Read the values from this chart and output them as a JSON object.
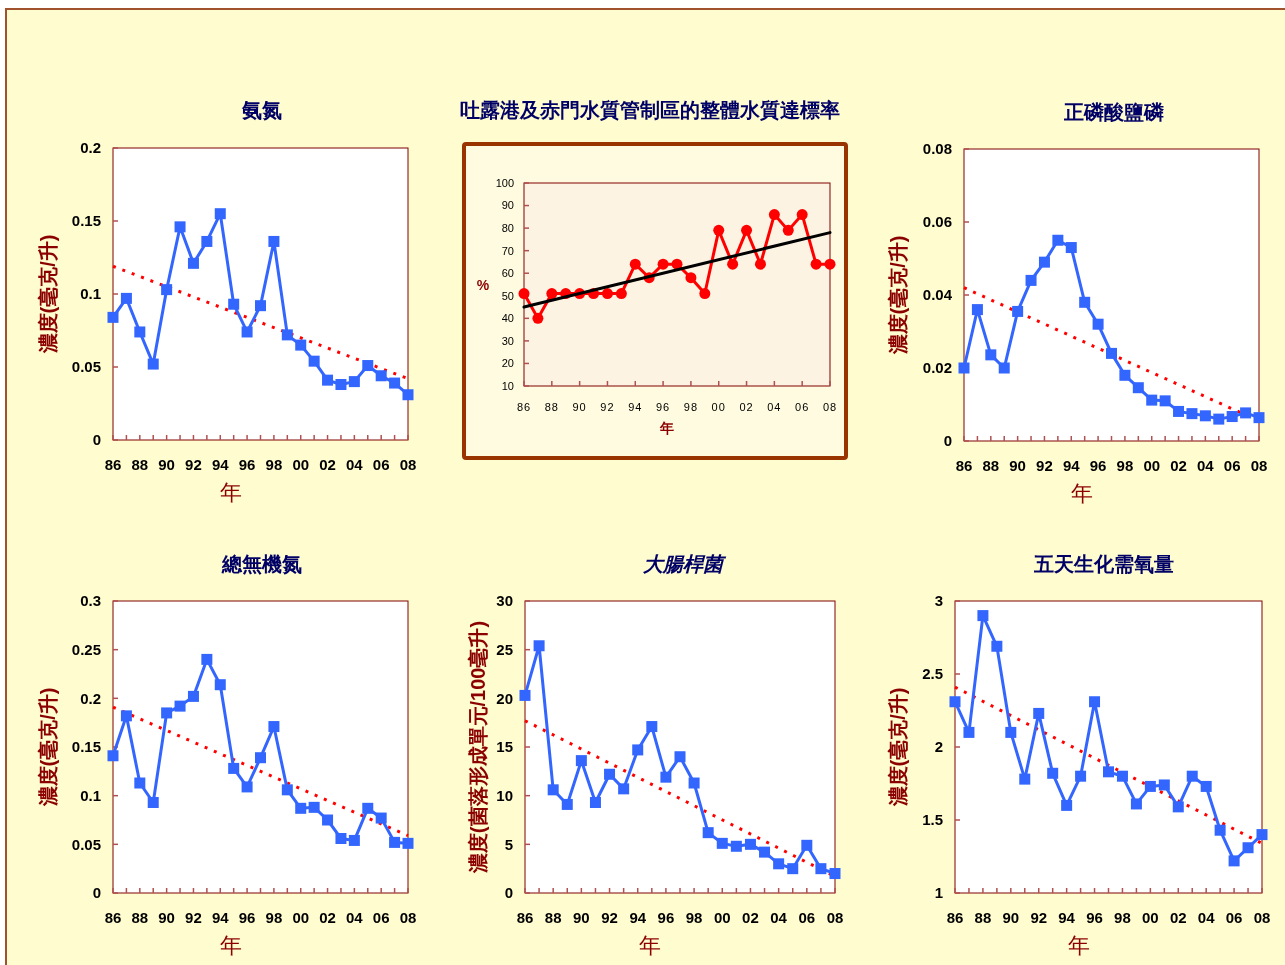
{
  "chart_data": [
    {
      "type": "line",
      "title": "氨氮",
      "xlabel": "年",
      "ylabel": "濃度(毫克/升)",
      "marker": "square",
      "xlim": [
        1986,
        2008
      ],
      "ylim": [
        0,
        0.2
      ],
      "yticks": [
        0,
        0.05,
        0.1,
        0.15,
        0.2
      ],
      "xticks": [
        {
          "value": 1986,
          "label": "86"
        },
        {
          "value": 1987,
          "label": null
        },
        {
          "value": 1988,
          "label": "88"
        },
        {
          "value": 1989,
          "label": null
        },
        {
          "value": 1990,
          "label": "90"
        },
        {
          "value": 1991,
          "label": null
        },
        {
          "value": 1992,
          "label": "92"
        },
        {
          "value": 1993,
          "label": null
        },
        {
          "value": 1994,
          "label": "94"
        },
        {
          "value": 1995,
          "label": null
        },
        {
          "value": 1996,
          "label": "96"
        },
        {
          "value": 1997,
          "label": null
        },
        {
          "value": 1998,
          "label": "98"
        },
        {
          "value": 1999,
          "label": null
        },
        {
          "value": 2000,
          "label": "00"
        },
        {
          "value": 2001,
          "label": null
        },
        {
          "value": 2002,
          "label": "02"
        },
        {
          "value": 2003,
          "label": null
        },
        {
          "value": 2004,
          "label": "04"
        },
        {
          "value": 2005,
          "label": null
        },
        {
          "value": 2006,
          "label": "06"
        },
        {
          "value": 2007,
          "label": null
        },
        {
          "value": 2008,
          "label": "08"
        }
      ],
      "x": [
        1986,
        1987,
        1988,
        1989,
        1990,
        1991,
        1992,
        1993,
        1994,
        1995,
        1996,
        1997,
        1998,
        1999,
        2000,
        2001,
        2002,
        2003,
        2004,
        2005,
        2006,
        2007,
        2008
      ],
      "series": [
        {
          "color": "#3366ff",
          "values": [
            0.084,
            0.097,
            0.074,
            0.052,
            0.103,
            0.146,
            0.121,
            0.136,
            0.155,
            0.093,
            0.074,
            0.092,
            0.136,
            0.072,
            0.065,
            0.054,
            0.041,
            0.038,
            0.04,
            0.051,
            0.044,
            0.039,
            0.031
          ]
        },
        {
          "type": "line",
          "color": "#ff0000",
          "values": [
            0.119,
            null,
            null,
            null,
            null,
            null,
            null,
            null,
            null,
            null,
            null,
            null,
            null,
            null,
            null,
            null,
            null,
            null,
            null,
            null,
            null,
            null,
            0.042
          ],
          "marker": "none",
          "line_style": "dotted"
        }
      ]
    },
    {
      "type": "line",
      "title": "吐露港及赤門水質管制區的整體水質達標率",
      "xlabel": "年",
      "ylabel": "%",
      "marker": "circle",
      "xlim": [
        1986,
        2008
      ],
      "ylim": [
        10,
        100
      ],
      "yticks": [
        10,
        20,
        30,
        40,
        50,
        60,
        70,
        80,
        90,
        100
      ],
      "xticks": [
        {
          "value": 1986,
          "label": "86"
        },
        {
          "value": 1988,
          "label": "88"
        },
        {
          "value": 1990,
          "label": "90"
        },
        {
          "value": 1992,
          "label": "92"
        },
        {
          "value": 1994,
          "label": "94"
        },
        {
          "value": 1996,
          "label": "96"
        },
        {
          "value": 1998,
          "label": "98"
        },
        {
          "value": 2000,
          "label": "00"
        },
        {
          "value": 2002,
          "label": "02"
        },
        {
          "value": 2004,
          "label": "04"
        },
        {
          "value": 2006,
          "label": "06"
        },
        {
          "value": 2008,
          "label": "08"
        }
      ],
      "x": [
        1986,
        1987,
        1988,
        1989,
        1990,
        1991,
        1992,
        1993,
        1994,
        1995,
        1996,
        1997,
        1998,
        1999,
        2000,
        2001,
        2002,
        2003,
        2004,
        2005,
        2006,
        2007,
        2008
      ],
      "series": [
        {
          "color": "#ff0000",
          "values": [
            51,
            40,
            51,
            51,
            51,
            51,
            51,
            51,
            64,
            58,
            64,
            64,
            58,
            51,
            79,
            64,
            79,
            64,
            86,
            79,
            86,
            64,
            64
          ]
        },
        {
          "type": "line",
          "color": "#000000",
          "values": [
            45,
            null,
            null,
            null,
            null,
            null,
            null,
            null,
            null,
            null,
            null,
            null,
            null,
            null,
            null,
            null,
            null,
            null,
            null,
            null,
            null,
            null,
            78
          ],
          "marker": "none"
        }
      ]
    },
    {
      "type": "line",
      "title": "正磷酸鹽磷",
      "xlabel": "年",
      "ylabel": "濃度(毫克/升)",
      "marker": "square",
      "xlim": [
        1986,
        2008
      ],
      "ylim": [
        0,
        0.08
      ],
      "yticks": [
        0,
        0.02,
        0.04,
        0.06,
        0.08
      ],
      "xticks": [
        {
          "value": 1986,
          "label": "86"
        },
        {
          "value": 1987,
          "label": null
        },
        {
          "value": 1988,
          "label": "88"
        },
        {
          "value": 1989,
          "label": null
        },
        {
          "value": 1990,
          "label": "90"
        },
        {
          "value": 1991,
          "label": null
        },
        {
          "value": 1992,
          "label": "92"
        },
        {
          "value": 1993,
          "label": null
        },
        {
          "value": 1994,
          "label": "94"
        },
        {
          "value": 1995,
          "label": null
        },
        {
          "value": 1996,
          "label": "96"
        },
        {
          "value": 1997,
          "label": null
        },
        {
          "value": 1998,
          "label": "98"
        },
        {
          "value": 1999,
          "label": null
        },
        {
          "value": 2000,
          "label": "00"
        },
        {
          "value": 2001,
          "label": null
        },
        {
          "value": 2002,
          "label": "02"
        },
        {
          "value": 2003,
          "label": null
        },
        {
          "value": 2004,
          "label": "04"
        },
        {
          "value": 2005,
          "label": null
        },
        {
          "value": 2006,
          "label": "06"
        },
        {
          "value": 2007,
          "label": null
        },
        {
          "value": 2008,
          "label": "08"
        }
      ],
      "x": [
        1986,
        1987,
        1988,
        1989,
        1990,
        1991,
        1992,
        1993,
        1994,
        1995,
        1996,
        1997,
        1998,
        1999,
        2000,
        2001,
        2002,
        2003,
        2004,
        2005,
        2006,
        2007,
        2008
      ],
      "series": [
        {
          "color": "#3366ff",
          "values": [
            0.02,
            0.036,
            0.0236,
            0.02,
            0.0355,
            0.044,
            0.049,
            0.055,
            0.053,
            0.038,
            0.032,
            0.024,
            0.018,
            0.0146,
            0.0112,
            0.011,
            0.0081,
            0.0075,
            0.0069,
            0.006,
            0.0067,
            0.0077,
            0.0064
          ]
        },
        {
          "type": "line",
          "color": "#ff0000",
          "values": [
            0.042,
            null,
            null,
            null,
            null,
            null,
            null,
            null,
            null,
            null,
            null,
            null,
            null,
            null,
            null,
            null,
            null,
            null,
            null,
            null,
            null,
            null,
            0.0055
          ],
          "marker": "none",
          "line_style": "dotted"
        }
      ]
    },
    {
      "type": "line",
      "title": "總無機氮",
      "xlabel": "年",
      "ylabel": "濃度(毫克/升)",
      "marker": "square",
      "xlim": [
        1986,
        2008
      ],
      "ylim": [
        0,
        0.3
      ],
      "yticks": [
        0,
        0.05,
        0.1,
        0.15,
        0.2,
        0.25,
        0.3
      ],
      "xticks": [
        {
          "value": 1986,
          "label": "86"
        },
        {
          "value": 1987,
          "label": null
        },
        {
          "value": 1988,
          "label": "88"
        },
        {
          "value": 1989,
          "label": null
        },
        {
          "value": 1990,
          "label": "90"
        },
        {
          "value": 1991,
          "label": null
        },
        {
          "value": 1992,
          "label": "92"
        },
        {
          "value": 1993,
          "label": null
        },
        {
          "value": 1994,
          "label": "94"
        },
        {
          "value": 1995,
          "label": null
        },
        {
          "value": 1996,
          "label": "96"
        },
        {
          "value": 1997,
          "label": null
        },
        {
          "value": 1998,
          "label": "98"
        },
        {
          "value": 1999,
          "label": null
        },
        {
          "value": 2000,
          "label": "00"
        },
        {
          "value": 2001,
          "label": null
        },
        {
          "value": 2002,
          "label": "02"
        },
        {
          "value": 2003,
          "label": null
        },
        {
          "value": 2004,
          "label": "04"
        },
        {
          "value": 2005,
          "label": null
        },
        {
          "value": 2006,
          "label": "06"
        },
        {
          "value": 2007,
          "label": null
        },
        {
          "value": 2008,
          "label": "08"
        }
      ],
      "x": [
        1986,
        1987,
        1988,
        1989,
        1990,
        1991,
        1992,
        1993,
        1994,
        1995,
        1996,
        1997,
        1998,
        1999,
        2000,
        2001,
        2002,
        2003,
        2004,
        2005,
        2006,
        2007,
        2008
      ],
      "series": [
        {
          "color": "#3366ff",
          "values": [
            0.141,
            0.182,
            0.113,
            0.093,
            0.185,
            0.192,
            0.202,
            0.24,
            0.214,
            0.128,
            0.109,
            0.139,
            0.171,
            0.106,
            0.087,
            0.088,
            0.075,
            0.056,
            0.054,
            0.087,
            0.077,
            0.052,
            0.051
          ]
        },
        {
          "type": "line",
          "color": "#ff0000",
          "values": [
            0.191,
            null,
            null,
            null,
            null,
            null,
            null,
            null,
            null,
            null,
            null,
            null,
            null,
            null,
            null,
            null,
            null,
            null,
            null,
            null,
            null,
            null,
            0.059
          ],
          "marker": "none",
          "line_style": "dotted"
        }
      ]
    },
    {
      "type": "line",
      "title": "大腸桿菌",
      "xlabel": "年",
      "ylabel": "濃度(菌落形成單元/100毫升)",
      "marker": "square",
      "xlim": [
        1986,
        2008
      ],
      "ylim": [
        0,
        30
      ],
      "yticks": [
        0,
        5,
        10,
        15,
        20,
        25,
        30
      ],
      "xticks": [
        {
          "value": 1986,
          "label": "86"
        },
        {
          "value": 1987,
          "label": null
        },
        {
          "value": 1988,
          "label": "88"
        },
        {
          "value": 1989,
          "label": null
        },
        {
          "value": 1990,
          "label": "90"
        },
        {
          "value": 1991,
          "label": null
        },
        {
          "value": 1992,
          "label": "92"
        },
        {
          "value": 1993,
          "label": null
        },
        {
          "value": 1994,
          "label": "94"
        },
        {
          "value": 1995,
          "label": null
        },
        {
          "value": 1996,
          "label": "96"
        },
        {
          "value": 1997,
          "label": null
        },
        {
          "value": 1998,
          "label": "98"
        },
        {
          "value": 1999,
          "label": null
        },
        {
          "value": 2000,
          "label": "00"
        },
        {
          "value": 2001,
          "label": null
        },
        {
          "value": 2002,
          "label": "02"
        },
        {
          "value": 2003,
          "label": null
        },
        {
          "value": 2004,
          "label": "04"
        },
        {
          "value": 2005,
          "label": null
        },
        {
          "value": 2006,
          "label": "06"
        },
        {
          "value": 2007,
          "label": null
        },
        {
          "value": 2008,
          "label": "08"
        }
      ],
      "x": [
        1986,
        1987,
        1988,
        1989,
        1990,
        1991,
        1992,
        1993,
        1994,
        1995,
        1996,
        1997,
        1998,
        1999,
        2000,
        2001,
        2002,
        2003,
        2004,
        2005,
        2006,
        2007,
        2008
      ],
      "series": [
        {
          "color": "#3366ff",
          "values": [
            20.3,
            25.4,
            10.6,
            9.1,
            13.6,
            9.3,
            12.2,
            10.7,
            14.7,
            17.1,
            11.9,
            14.0,
            11.3,
            6.2,
            5.1,
            4.8,
            5.0,
            4.2,
            3.0,
            2.5,
            4.9,
            2.5,
            2.0
          ]
        },
        {
          "type": "line",
          "color": "#ff0000",
          "values": [
            17.7,
            null,
            null,
            null,
            null,
            null,
            null,
            null,
            null,
            null,
            null,
            null,
            null,
            null,
            null,
            null,
            null,
            null,
            null,
            null,
            null,
            null,
            1.7
          ],
          "marker": "none",
          "line_style": "dotted"
        }
      ]
    },
    {
      "type": "line",
      "title": "五天生化需氧量",
      "xlabel": "年",
      "ylabel": "濃度(毫克/升)",
      "marker": "square",
      "xlim": [
        1986,
        2008
      ],
      "ylim": [
        1,
        3
      ],
      "yticks": [
        1,
        1.5,
        2,
        2.5,
        3
      ],
      "xticks": [
        {
          "value": 1986,
          "label": "86"
        },
        {
          "value": 1987,
          "label": null
        },
        {
          "value": 1988,
          "label": "88"
        },
        {
          "value": 1989,
          "label": null
        },
        {
          "value": 1990,
          "label": "90"
        },
        {
          "value": 1991,
          "label": null
        },
        {
          "value": 1992,
          "label": "92"
        },
        {
          "value": 1993,
          "label": null
        },
        {
          "value": 1994,
          "label": "94"
        },
        {
          "value": 1995,
          "label": null
        },
        {
          "value": 1996,
          "label": "96"
        },
        {
          "value": 1997,
          "label": null
        },
        {
          "value": 1998,
          "label": "98"
        },
        {
          "value": 1999,
          "label": null
        },
        {
          "value": 2000,
          "label": "00"
        },
        {
          "value": 2001,
          "label": null
        },
        {
          "value": 2002,
          "label": "02"
        },
        {
          "value": 2003,
          "label": null
        },
        {
          "value": 2004,
          "label": "04"
        },
        {
          "value": 2005,
          "label": null
        },
        {
          "value": 2006,
          "label": "06"
        },
        {
          "value": 2007,
          "label": null
        },
        {
          "value": 2008,
          "label": "08"
        }
      ],
      "x": [
        1986,
        1987,
        1988,
        1989,
        1990,
        1991,
        1992,
        1993,
        1994,
        1995,
        1996,
        1997,
        1998,
        1999,
        2000,
        2001,
        2002,
        2003,
        2004,
        2005,
        2006,
        2007,
        2008
      ],
      "series": [
        {
          "color": "#3366ff",
          "values": [
            2.31,
            2.1,
            2.9,
            2.69,
            2.1,
            1.78,
            2.23,
            1.82,
            1.6,
            1.8,
            2.31,
            1.83,
            1.8,
            1.61,
            1.73,
            1.74,
            1.59,
            1.8,
            1.73,
            1.43,
            1.22,
            1.31,
            1.4
          ]
        },
        {
          "type": "line",
          "color": "#ff0000",
          "values": [
            2.41,
            null,
            null,
            null,
            null,
            null,
            null,
            null,
            null,
            null,
            null,
            null,
            null,
            null,
            null,
            null,
            null,
            null,
            null,
            null,
            null,
            null,
            1.34
          ],
          "marker": "none",
          "line_style": "dotted"
        }
      ]
    }
  ]
}
